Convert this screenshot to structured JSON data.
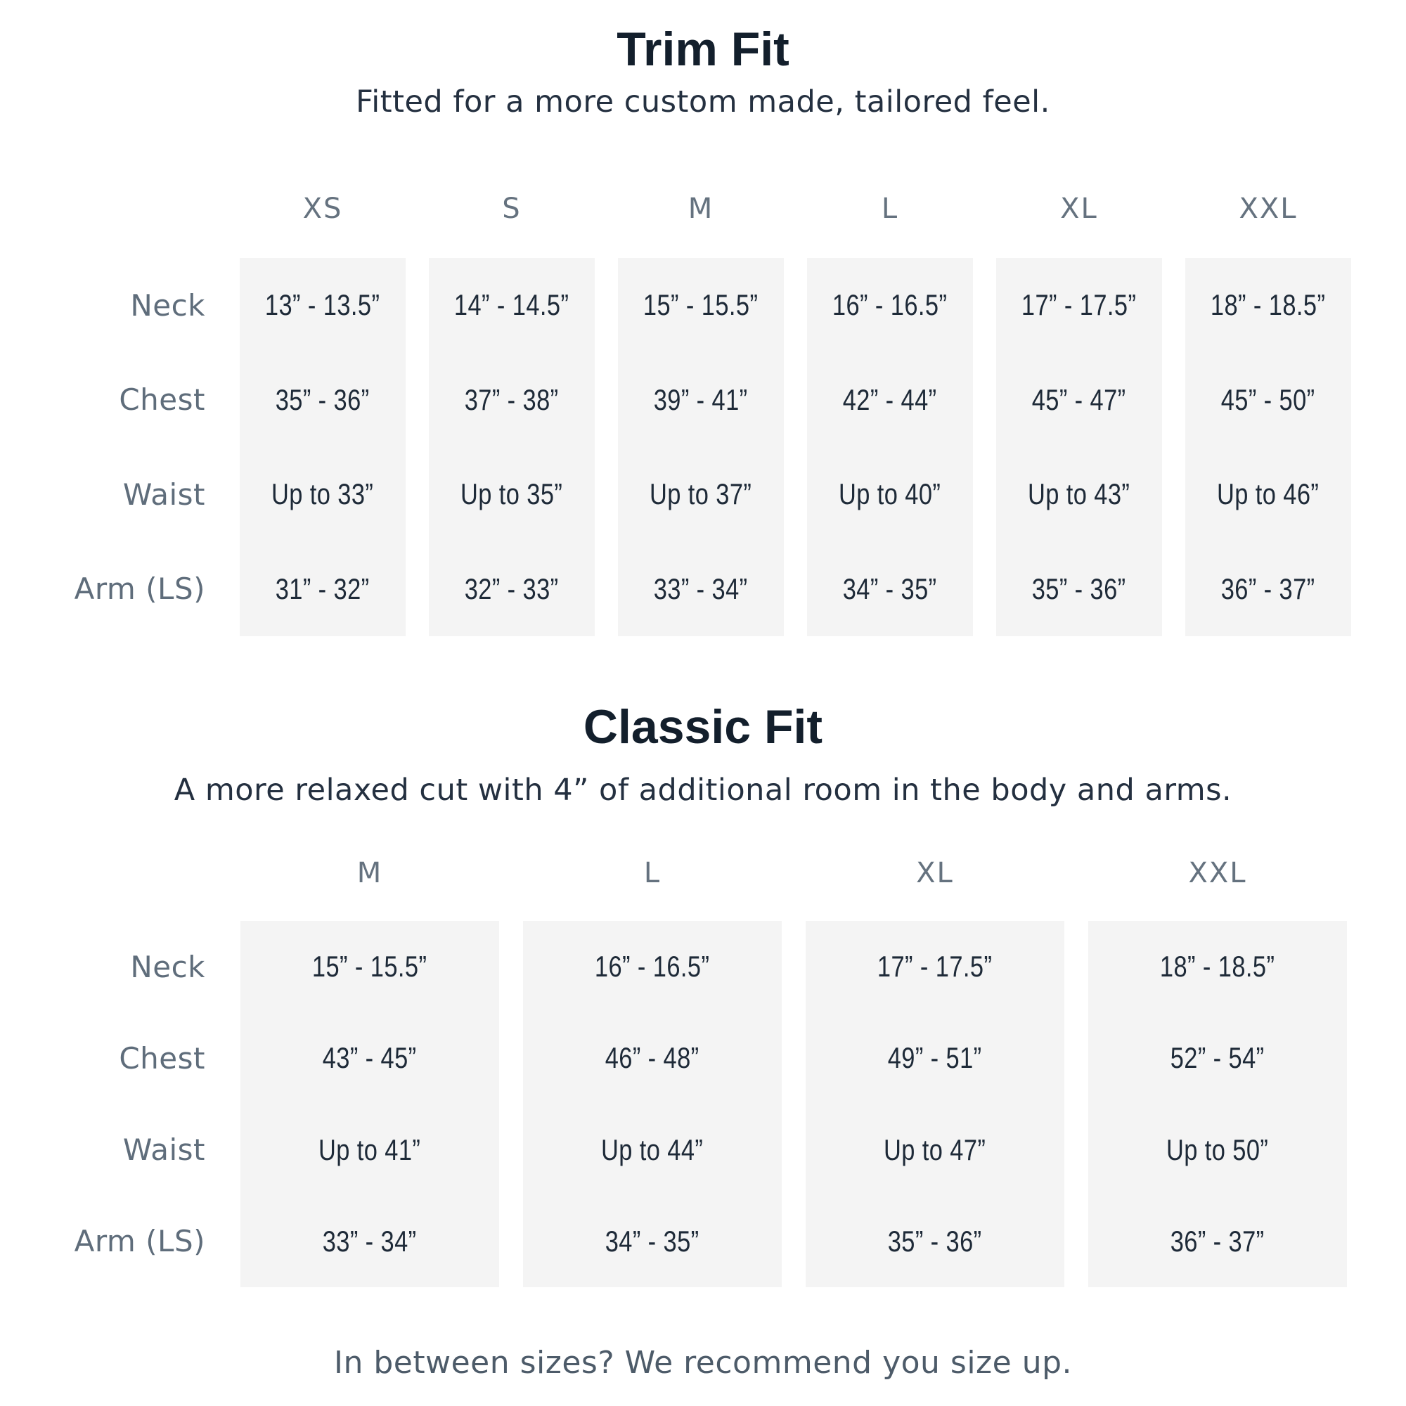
{
  "colors": {
    "background": "#ffffff",
    "column_background": "#f4f4f4",
    "title_text": "#131f2c",
    "value_text": "#1e2a38",
    "label_text": "#5f6d7b",
    "note_text": "#4d5b69"
  },
  "sections": [
    {
      "title": "Trim Fit",
      "subtitle": "Fitted for a more custom made, tailored feel.",
      "sizes": [
        "XS",
        "S",
        "M",
        "L",
        "XL",
        "XXL"
      ],
      "rows": [
        {
          "label": "Neck",
          "values": [
            "13” - 13.5”",
            "14” - 14.5”",
            "15” - 15.5”",
            "16” - 16.5”",
            "17” - 17.5”",
            "18” - 18.5”"
          ]
        },
        {
          "label": "Chest",
          "values": [
            "35” - 36”",
            "37” - 38”",
            "39” - 41”",
            "42” - 44”",
            "45” - 47”",
            "45” - 50”"
          ]
        },
        {
          "label": "Waist",
          "values": [
            "Up to 33”",
            "Up to 35”",
            "Up to 37”",
            "Up to 40”",
            "Up to 43”",
            "Up to 46”"
          ]
        },
        {
          "label": "Arm (LS)",
          "values": [
            "31” - 32”",
            "32” - 33”",
            "33” - 34”",
            "34” - 35”",
            "35” - 36”",
            "36” - 37”"
          ]
        }
      ]
    },
    {
      "title": "Classic Fit",
      "subtitle": "A more relaxed cut with 4” of additional room in the body and arms.",
      "sizes": [
        "M",
        "L",
        "XL",
        "XXL"
      ],
      "rows": [
        {
          "label": "Neck",
          "values": [
            "15” - 15.5”",
            "16” - 16.5”",
            "17” - 17.5”",
            "18” - 18.5”"
          ]
        },
        {
          "label": "Chest",
          "values": [
            "43” - 45”",
            "46” - 48”",
            "49” - 51”",
            "52” - 54”"
          ]
        },
        {
          "label": "Waist",
          "values": [
            "Up to 41”",
            "Up to 44”",
            "Up to 47”",
            "Up to 50”"
          ]
        },
        {
          "label": "Arm (LS)",
          "values": [
            "33” - 34”",
            "34” - 35”",
            "35” - 36”",
            "36” - 37”"
          ]
        }
      ]
    }
  ],
  "footer_note": "In between sizes? We recommend you size up."
}
